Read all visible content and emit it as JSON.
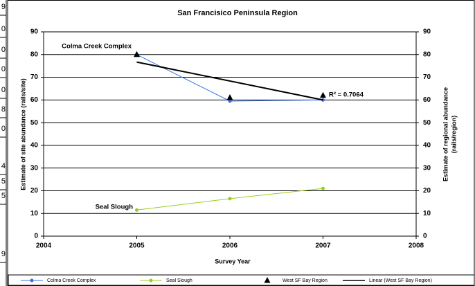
{
  "side_cells": [
    "9",
    "0",
    "0",
    "0",
    "0",
    "8",
    "0",
    "4",
    "5",
    "5",
    "9"
  ],
  "chart_data": {
    "type": "line",
    "title": "San Francisico Peninsula Region",
    "x_label": "Survey Year",
    "y_label": "Estimate of site abundance (rails/site)",
    "y2_label": [
      "Estimate of regional abundance",
      "(rails/region)"
    ],
    "xlim": [
      2004,
      2008
    ],
    "xticks": [
      2004,
      2005,
      2006,
      2007,
      2008
    ],
    "ylim": [
      0,
      90
    ],
    "yticks": [
      0,
      10,
      20,
      30,
      40,
      50,
      60,
      70,
      80,
      90
    ],
    "y2lim": [
      0,
      90
    ],
    "y2ticks": [
      0,
      10,
      20,
      30,
      40,
      50,
      60,
      70,
      80,
      90
    ],
    "grid": true,
    "legend": "bottom",
    "annotations": [
      "Colma Creek Complex",
      "Seal Slough",
      "R² = 0.7064"
    ],
    "series": [
      {
        "name": "Colma Creek Complex",
        "color": "#3a6fe0",
        "marker": "circle",
        "line": true,
        "x": [
          2005,
          2006,
          2007
        ],
        "values": [
          80,
          59.5,
          60
        ]
      },
      {
        "name": "Seal Slough",
        "color": "#99cc22",
        "marker": "circle",
        "line": true,
        "x": [
          2005,
          2006,
          2007
        ],
        "values": [
          11.5,
          16.5,
          21
        ]
      },
      {
        "name": "West SF Bay Region",
        "color": "#000000",
        "marker": "triangle",
        "line": false,
        "axis": "y2",
        "x": [
          2005,
          2006,
          2007
        ],
        "values": [
          80,
          61,
          62
        ]
      },
      {
        "name": "Linear (West SF Bay Region)",
        "color": "#000000",
        "marker": "none",
        "line": true,
        "axis": "y2",
        "x": [
          2005,
          2007
        ],
        "values": [
          76.7,
          60
        ]
      }
    ]
  }
}
